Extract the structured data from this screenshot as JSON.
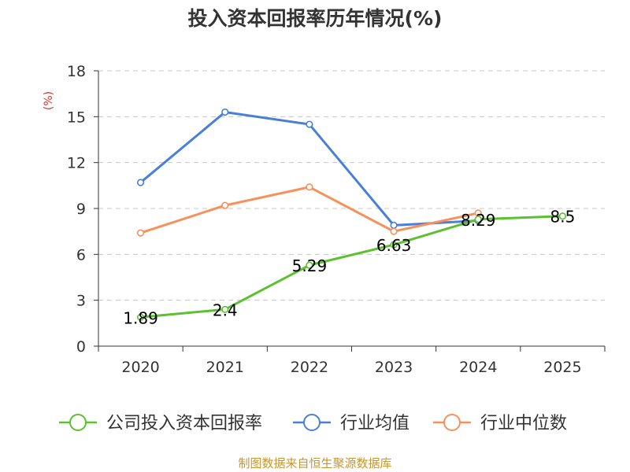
{
  "chart_data": {
    "type": "line",
    "title": "投入资本回报率历年情况(%)",
    "ylabel": "(%)",
    "categories": [
      "2020",
      "2021",
      "2022",
      "2023",
      "2024",
      "2025"
    ],
    "ylim": [
      0,
      18
    ],
    "yticks": [
      0,
      3,
      6,
      9,
      12,
      15,
      18
    ],
    "grid": true,
    "legend_position": "bottom",
    "series": [
      {
        "name": "公司投入资本回报率",
        "color": "#5cc12e",
        "values": [
          1.89,
          2.4,
          5.29,
          6.63,
          8.29,
          8.5
        ],
        "labels": [
          "1.89",
          "2.4",
          "5.29",
          "6.63",
          "8.29",
          "8.5"
        ]
      },
      {
        "name": "行业均值",
        "color": "#4a7fd8",
        "values": [
          10.7,
          15.3,
          14.5,
          7.9,
          8.2,
          null
        ],
        "labels": []
      },
      {
        "name": "行业中位数",
        "color": "#f7915c",
        "values": [
          7.4,
          9.2,
          10.4,
          7.5,
          8.7,
          null
        ],
        "labels": []
      }
    ]
  },
  "footer": {
    "source": "制图数据来自恒生聚源数据库"
  }
}
